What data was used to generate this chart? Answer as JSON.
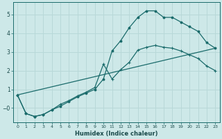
{
  "xlabel": "Humidex (Indice chaleur)",
  "ylabel": "",
  "bg_color": "#cde8e8",
  "grid_color": "#b8d8d8",
  "line_color": "#1a6b6b",
  "xlim": [
    -0.5,
    23.5
  ],
  "ylim": [
    -0.75,
    5.65
  ],
  "xticks": [
    0,
    1,
    2,
    3,
    4,
    5,
    6,
    7,
    8,
    9,
    10,
    11,
    12,
    13,
    14,
    15,
    16,
    17,
    18,
    19,
    20,
    21,
    22,
    23
  ],
  "yticks": [
    0,
    1,
    2,
    3,
    4,
    5
  ],
  "ytick_labels": [
    "−0",
    "1",
    "2",
    "3",
    "4",
    "5"
  ],
  "curve1_x": [
    0,
    1,
    2,
    3,
    4,
    5,
    6,
    7,
    8,
    9,
    10,
    11,
    12,
    13,
    14,
    15,
    16,
    17,
    18,
    19,
    20,
    21,
    22,
    23
  ],
  "curve1_y": [
    0.7,
    -0.3,
    -0.45,
    -0.35,
    -0.1,
    0.1,
    0.35,
    0.6,
    0.8,
    1.0,
    1.55,
    3.05,
    3.6,
    4.3,
    4.85,
    5.2,
    5.2,
    4.85,
    4.85,
    4.6,
    4.35,
    4.1,
    3.5,
    3.2
  ],
  "curve2_x": [
    0,
    1,
    2,
    3,
    4,
    5,
    6,
    7,
    8,
    9,
    10,
    11,
    12,
    13,
    14,
    15,
    16,
    17,
    18,
    19,
    20,
    21,
    22,
    23
  ],
  "curve2_y": [
    0.7,
    -0.3,
    -0.45,
    -0.35,
    -0.1,
    0.2,
    0.4,
    0.65,
    0.85,
    1.1,
    2.35,
    1.55,
    2.05,
    2.45,
    3.1,
    3.25,
    3.35,
    3.25,
    3.2,
    3.05,
    2.85,
    2.65,
    2.25,
    2.0
  ],
  "curve3_x": [
    0,
    23
  ],
  "curve3_y": [
    0.7,
    3.2
  ]
}
